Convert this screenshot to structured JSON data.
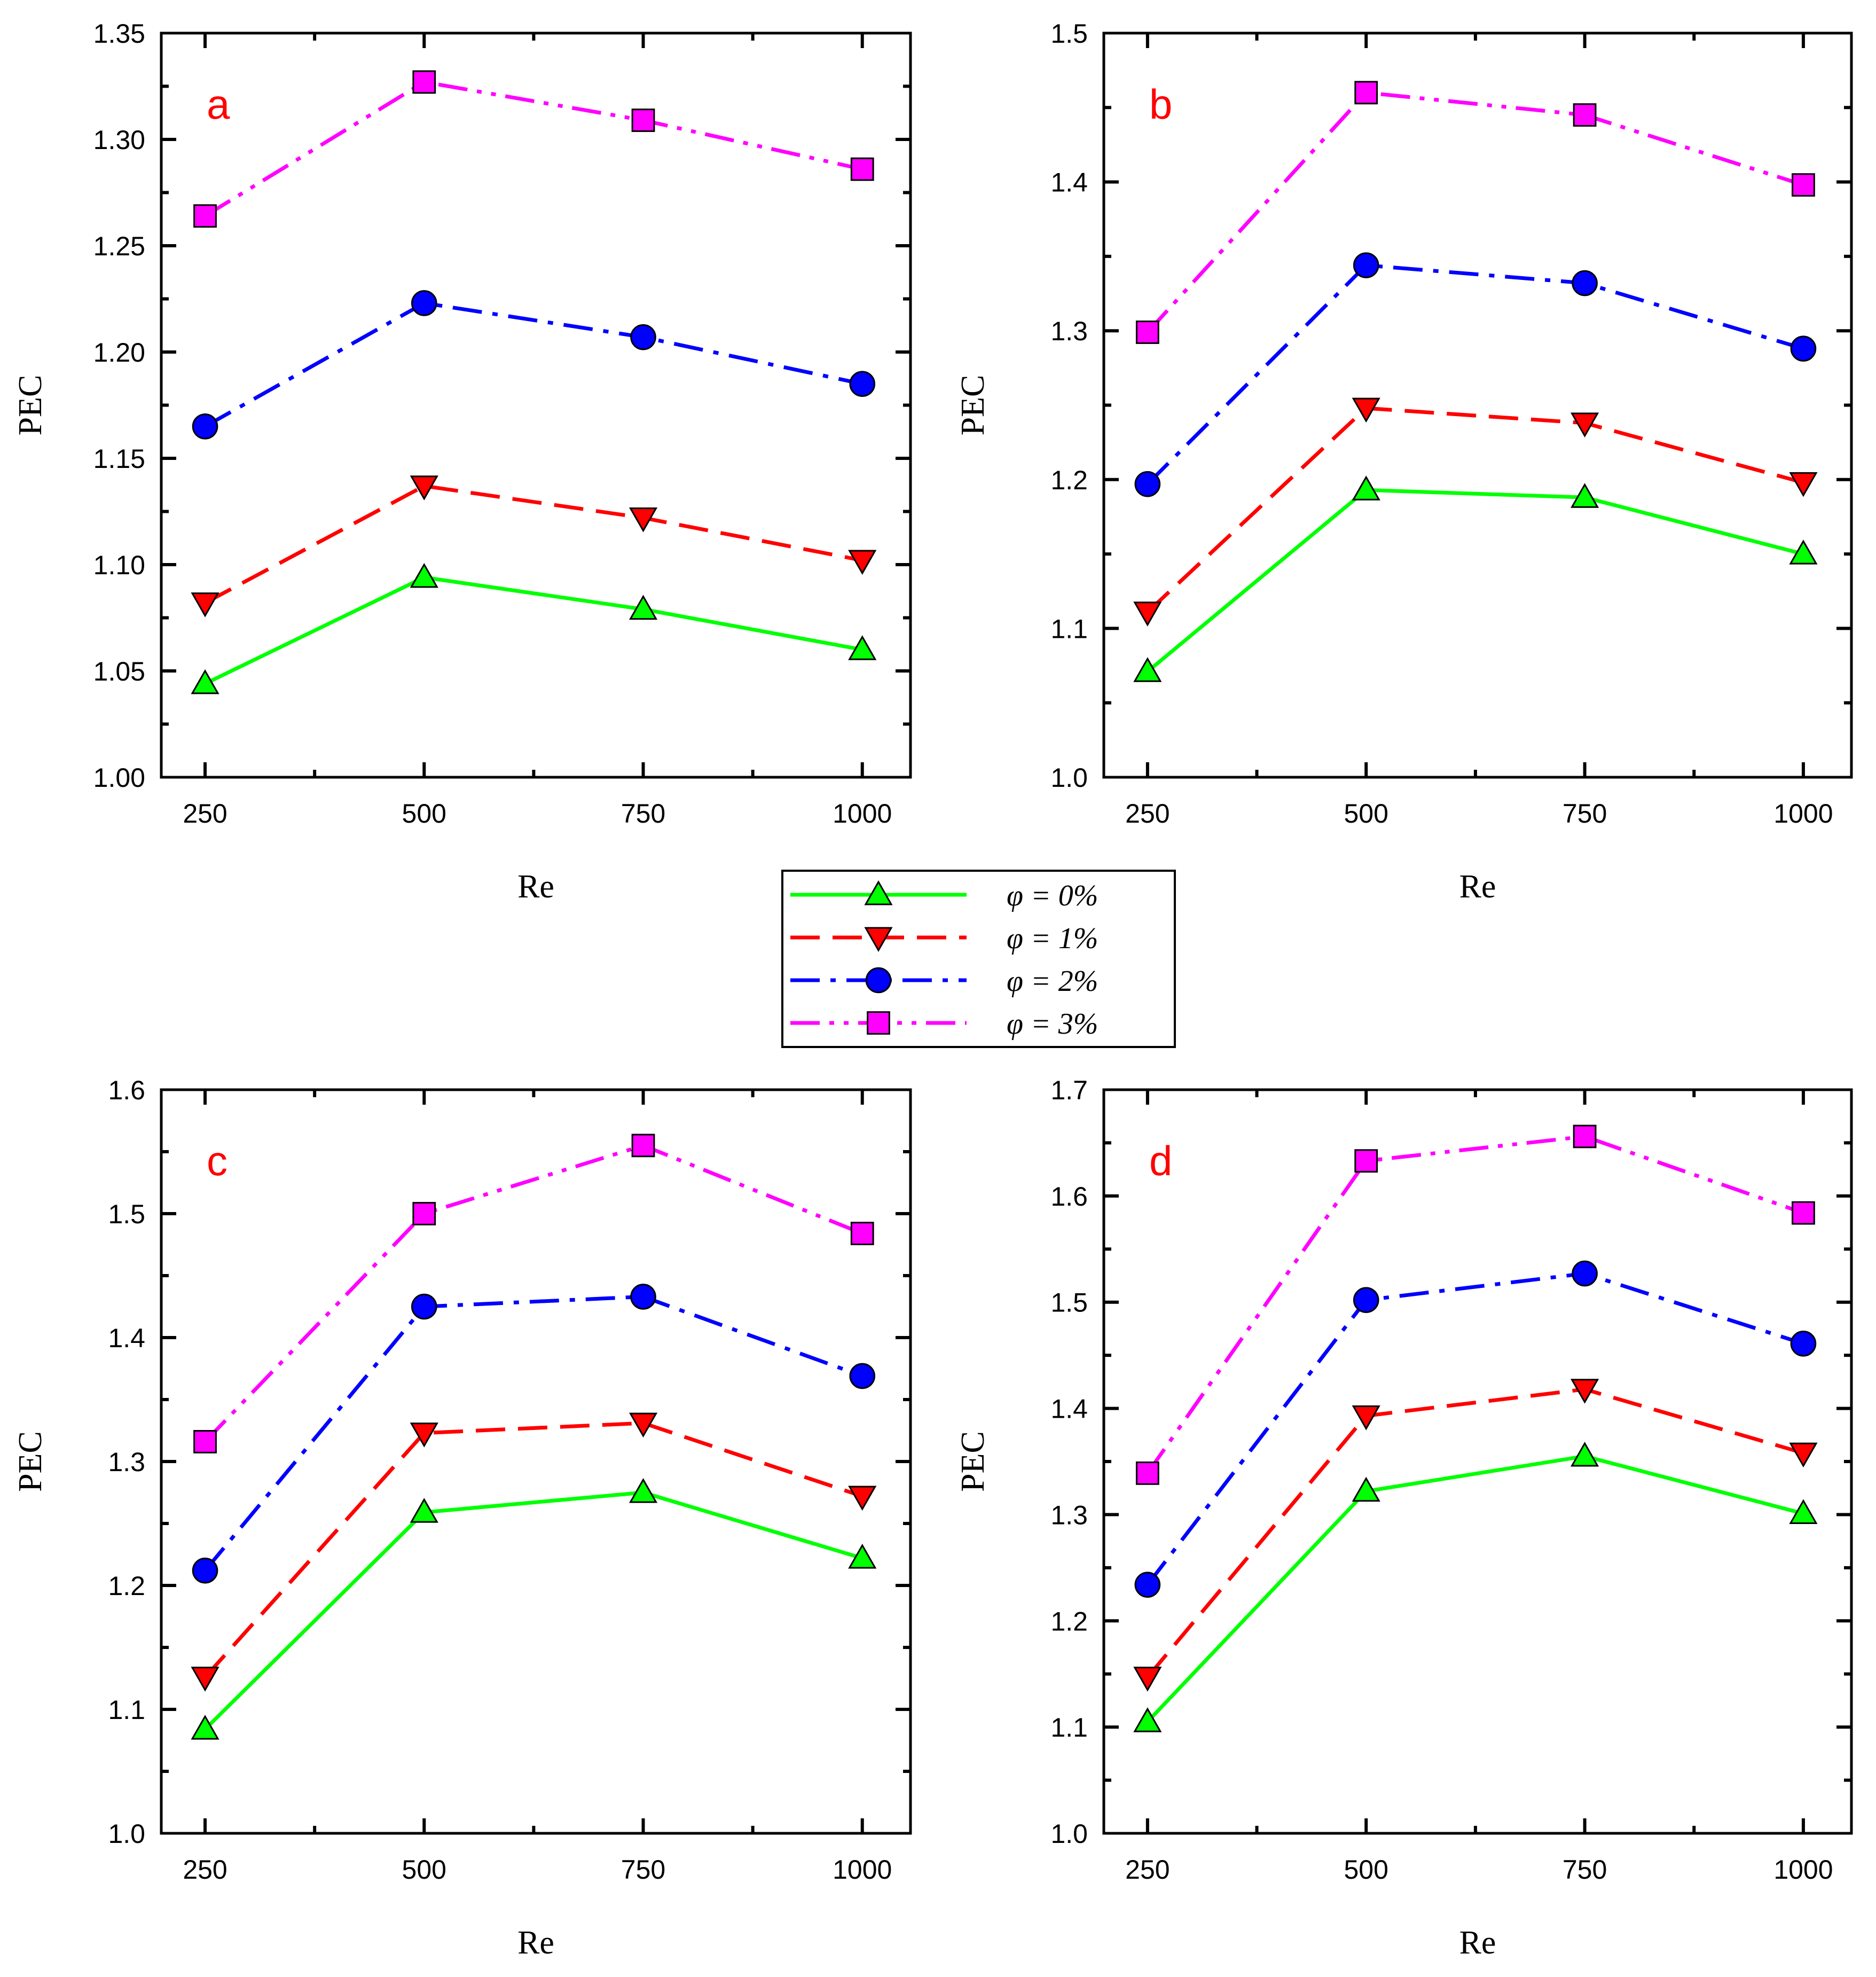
{
  "colors": {
    "phi0": "#00ff00",
    "phi1": "#ff0000",
    "phi2": "#0000ff",
    "phi3": "#ff00ff"
  },
  "legend": {
    "entries": [
      {
        "label": "φ = 0%",
        "series": "phi0"
      },
      {
        "label": "φ = 1%",
        "series": "phi1"
      },
      {
        "label": "φ = 2%",
        "series": "phi2"
      },
      {
        "label": "φ = 3%",
        "series": "phi3"
      }
    ]
  },
  "chart_data": [
    {
      "panel": "a",
      "type": "line",
      "xlabel": "Re",
      "ylabel": "PEC",
      "x": [
        250,
        500,
        750,
        1000
      ],
      "xticks": [
        "250",
        "500",
        "750",
        "1000"
      ],
      "xlim": [
        200,
        1055
      ],
      "ylim": [
        1.0,
        1.35
      ],
      "yticks": [
        "1.00",
        "1.05",
        "1.10",
        "1.15",
        "1.20",
        "1.25",
        "1.30",
        "1.35"
      ],
      "series": [
        {
          "name": "φ = 0%",
          "key": "phi0",
          "marker": "triangle-up",
          "dash": "solid",
          "values": [
            1.044,
            1.094,
            1.079,
            1.06
          ]
        },
        {
          "name": "φ = 1%",
          "key": "phi1",
          "marker": "triangle-down",
          "dash": "dash",
          "values": [
            1.082,
            1.137,
            1.122,
            1.102
          ]
        },
        {
          "name": "φ = 2%",
          "key": "phi2",
          "marker": "circle",
          "dash": "dashdot",
          "values": [
            1.165,
            1.223,
            1.207,
            1.185
          ]
        },
        {
          "name": "φ = 3%",
          "key": "phi3",
          "marker": "square",
          "dash": "dashdotdot",
          "values": [
            1.264,
            1.327,
            1.309,
            1.286
          ]
        }
      ]
    },
    {
      "panel": "b",
      "type": "line",
      "xlabel": "Re",
      "ylabel": "PEC",
      "x": [
        250,
        500,
        750,
        1000
      ],
      "xticks": [
        "250",
        "500",
        "750",
        "1000"
      ],
      "xlim": [
        200,
        1055
      ],
      "ylim": [
        1.0,
        1.5
      ],
      "yticks": [
        "1.0",
        "1.1",
        "1.2",
        "1.3",
        "1.4",
        "1.5"
      ],
      "series": [
        {
          "name": "φ = 0%",
          "key": "phi0",
          "marker": "triangle-up",
          "dash": "solid",
          "values": [
            1.071,
            1.193,
            1.188,
            1.15
          ]
        },
        {
          "name": "φ = 1%",
          "key": "phi1",
          "marker": "triangle-down",
          "dash": "dash",
          "values": [
            1.111,
            1.248,
            1.238,
            1.198
          ]
        },
        {
          "name": "φ = 2%",
          "key": "phi2",
          "marker": "circle",
          "dash": "dashdot",
          "values": [
            1.197,
            1.344,
            1.332,
            1.288
          ]
        },
        {
          "name": "φ = 3%",
          "key": "phi3",
          "marker": "square",
          "dash": "dashdotdot",
          "values": [
            1.299,
            1.46,
            1.445,
            1.398
          ]
        }
      ]
    },
    {
      "panel": "c",
      "type": "line",
      "xlabel": "Re",
      "ylabel": "PEC",
      "x": [
        250,
        500,
        750,
        1000
      ],
      "xticks": [
        "250",
        "500",
        "750",
        "1000"
      ],
      "xlim": [
        200,
        1055
      ],
      "ylim": [
        1.0,
        1.6
      ],
      "yticks": [
        "1.0",
        "1.1",
        "1.2",
        "1.3",
        "1.4",
        "1.5",
        "1.6"
      ],
      "series": [
        {
          "name": "φ = 0%",
          "key": "phi0",
          "marker": "triangle-up",
          "dash": "solid",
          "values": [
            1.084,
            1.259,
            1.275,
            1.222
          ]
        },
        {
          "name": "φ = 1%",
          "key": "phi1",
          "marker": "triangle-down",
          "dash": "dash",
          "values": [
            1.126,
            1.323,
            1.331,
            1.272
          ]
        },
        {
          "name": "φ = 2%",
          "key": "phi2",
          "marker": "circle",
          "dash": "dashdot",
          "values": [
            1.212,
            1.425,
            1.433,
            1.369
          ]
        },
        {
          "name": "φ = 3%",
          "key": "phi3",
          "marker": "square",
          "dash": "dashdotdot",
          "values": [
            1.316,
            1.5,
            1.555,
            1.484
          ]
        }
      ]
    },
    {
      "panel": "d",
      "type": "line",
      "xlabel": "Re",
      "ylabel": "PEC",
      "x": [
        250,
        500,
        750,
        1000
      ],
      "xticks": [
        "250",
        "500",
        "750",
        "1000"
      ],
      "xlim": [
        200,
        1055
      ],
      "ylim": [
        1.0,
        1.7
      ],
      "yticks": [
        "1.0",
        "1.1",
        "1.2",
        "1.3",
        "1.4",
        "1.5",
        "1.6",
        "1.7"
      ],
      "series": [
        {
          "name": "φ = 0%",
          "key": "phi0",
          "marker": "triangle-up",
          "dash": "solid",
          "values": [
            1.105,
            1.322,
            1.355,
            1.301
          ]
        },
        {
          "name": "φ = 1%",
          "key": "phi1",
          "marker": "triangle-down",
          "dash": "dash",
          "values": [
            1.147,
            1.393,
            1.418,
            1.358
          ]
        },
        {
          "name": "φ = 2%",
          "key": "phi2",
          "marker": "circle",
          "dash": "dashdot",
          "values": [
            1.234,
            1.502,
            1.527,
            1.461
          ]
        },
        {
          "name": "φ = 3%",
          "key": "phi3",
          "marker": "square",
          "dash": "dashdotdot",
          "values": [
            1.339,
            1.633,
            1.656,
            1.584
          ]
        }
      ]
    }
  ]
}
